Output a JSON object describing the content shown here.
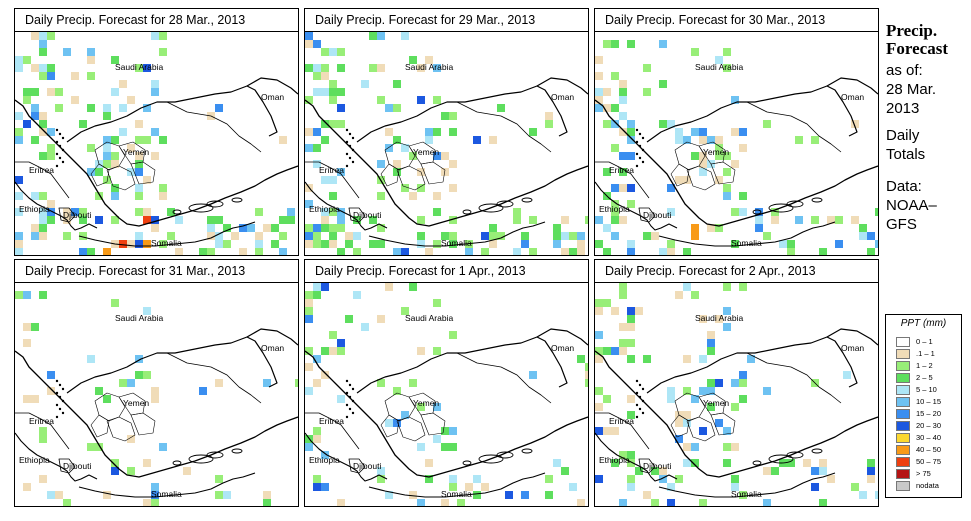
{
  "panels": [
    {
      "title": "Daily Precip. Forecast for  28 Mar., 2013"
    },
    {
      "title": "Daily Precip. Forecast for  29 Mar., 2013"
    },
    {
      "title": "Daily Precip. Forecast for  30 Mar., 2013"
    },
    {
      "title": "Daily Precip. Forecast for  31 Mar., 2013"
    },
    {
      "title": "Daily Precip. Forecast for  1 Apr., 2013"
    },
    {
      "title": "Daily Precip. Forecast for  2 Apr., 2013"
    }
  ],
  "map_labels": {
    "saudi": "Saudi Arabia",
    "oman": "Oman",
    "yemen": "Yemen",
    "eritrea": "Eritrea",
    "ethiopia": "Ethiopia",
    "djibouti": "Djibouti",
    "somalia": "Somalia"
  },
  "side": {
    "title_line1": "Precip.",
    "title_line2": "Forecast",
    "asof": "as of:",
    "date_line1": "28 Mar.",
    "date_line2": "2013",
    "daily1": "Daily",
    "daily2": "Totals",
    "data1": "Data:",
    "data2": "NOAA–",
    "data3": "GFS"
  },
  "legend": {
    "title": "PPT (mm)",
    "items": [
      {
        "label": "0 – 1",
        "color": "#ffffff"
      },
      {
        "label": ".1 – 1",
        "color": "#f0dcb8"
      },
      {
        "label": "1 – 2",
        "color": "#98ee78"
      },
      {
        "label": "2 – 5",
        "color": "#5ede5e"
      },
      {
        "label": "5 – 10",
        "color": "#aee6f6"
      },
      {
        "label": "10 – 15",
        "color": "#6ec2f2"
      },
      {
        "label": "15 – 20",
        "color": "#3a8ef0"
      },
      {
        "label": "20 – 30",
        "color": "#1c58e0"
      },
      {
        "label": "30 – 40",
        "color": "#fcd830"
      },
      {
        "label": "40 – 50",
        "color": "#f89a18"
      },
      {
        "label": "50 – 75",
        "color": "#ee4010"
      },
      {
        "label": "> 75",
        "color": "#b41414"
      },
      {
        "label": "nodata",
        "color": "#c8c8c8"
      }
    ]
  }
}
